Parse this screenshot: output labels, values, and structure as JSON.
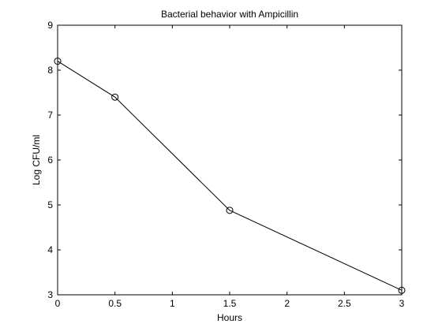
{
  "chart_data": {
    "type": "line",
    "title": "Bacterial behavior with Ampicillin",
    "xlabel": "Hours",
    "ylabel": "Log CFU/ml",
    "xlim": [
      0,
      3
    ],
    "ylim": [
      3,
      9
    ],
    "xticks": [
      0,
      0.5,
      1,
      1.5,
      2,
      2.5,
      3
    ],
    "xtick_labels": [
      "0",
      "0.5",
      "1",
      "1.5",
      "2",
      "2.5",
      "3"
    ],
    "yticks": [
      3,
      4,
      5,
      6,
      7,
      8,
      9
    ],
    "ytick_labels": [
      "3",
      "4",
      "5",
      "6",
      "7",
      "8",
      "9"
    ],
    "grid": false,
    "legend": "none",
    "marker": "circle",
    "line_color": "#000000",
    "series": [
      {
        "x": [
          0,
          0.5,
          1.5,
          3
        ],
        "y": [
          8.2,
          7.4,
          4.88,
          3.1
        ]
      }
    ]
  }
}
